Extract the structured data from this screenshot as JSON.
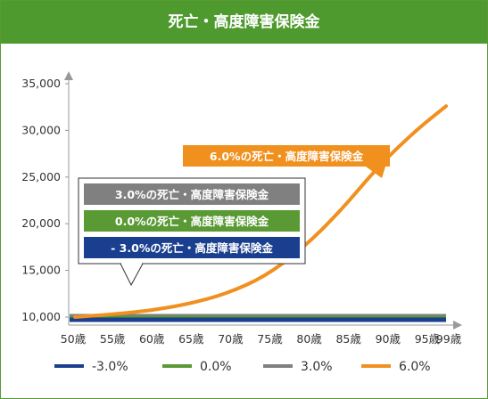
{
  "title": "死亡・高度障害保険金",
  "chart_data": {
    "type": "line",
    "title": "死亡・高度障害保険金",
    "x": [
      50,
      55,
      60,
      65,
      70,
      75,
      80,
      85,
      90,
      95,
      99
    ],
    "x_tick_labels": [
      "50歳",
      "55歳",
      "60歳",
      "65歳",
      "70歳",
      "75歳",
      "80歳",
      "85歳",
      "90歳",
      "95歳",
      "99歳"
    ],
    "y_ticks": [
      10000,
      15000,
      20000,
      25000,
      30000,
      35000
    ],
    "y_tick_labels": [
      "10,000",
      "15,000",
      "20,000",
      "25,000",
      "30,000",
      "35,000"
    ],
    "ylim": [
      10000,
      36000
    ],
    "xlim": [
      50,
      99
    ],
    "legend_position": "bottom",
    "series": [
      {
        "name": "-3.0%",
        "color": "#1b3f8f",
        "values": [
          10000,
          10000,
          10000,
          10000,
          10000,
          10000,
          10000,
          10000,
          10000,
          10000,
          10000
        ]
      },
      {
        "name": "0.0%",
        "color": "#5a9a35",
        "values": [
          10000,
          10000,
          10000,
          10000,
          10000,
          10000,
          10000,
          10000,
          10000,
          10000,
          10000
        ]
      },
      {
        "name": "3.0%",
        "color": "#808080",
        "values": [
          10000,
          10000,
          10000,
          10000,
          10000,
          10000,
          10000,
          10000,
          10000,
          10000,
          10000
        ]
      },
      {
        "name": "6.0%",
        "color": "#f0901e",
        "values": [
          10000,
          10300,
          10700,
          11400,
          12500,
          14300,
          17300,
          21300,
          26100,
          30000,
          32600
        ]
      }
    ],
    "annotations": [
      {
        "text": "6.0%の死亡・高度障害保険金",
        "color": "#f0901e"
      },
      {
        "text": "3.0%の死亡・高度障害保険金",
        "color": "#808080"
      },
      {
        "text": "0.0%の死亡・高度障害保険金",
        "color": "#5a9a35"
      },
      {
        "text": "- 3.0%の死亡・高度障害保険金",
        "color": "#1b3f8f"
      }
    ]
  }
}
